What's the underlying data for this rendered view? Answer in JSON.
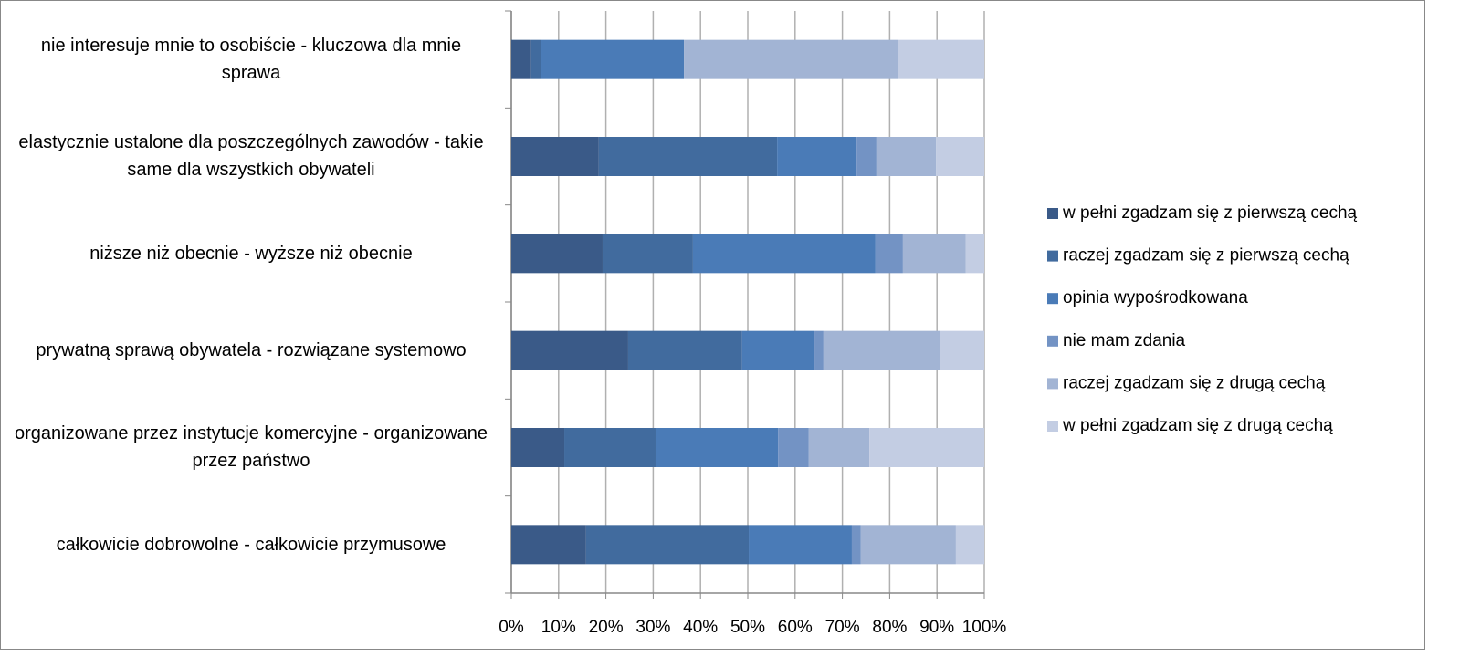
{
  "chart_data": {
    "type": "stacked_barh",
    "categories": [
      "nie interesuje mnie to osobiście - kluczowa dla mnie sprawa",
      "elastycznie ustalone dla poszczególnych zawodów - takie same dla wszystkich obywateli",
      "niższe niż obecnie - wyższe niż obecnie",
      "prywatną sprawą obywatela - rozwiązane systemowo",
      "organizowane przez instytucje komercyjne - organizowane przez państwo",
      "całkowicie dobrowolne - całkowicie przymusowe"
    ],
    "series": [
      {
        "name": "w pełni zgadzam się z pierwszą cechą",
        "color": "#3a5a88",
        "values": [
          4.2,
          18.5,
          19.3,
          24.7,
          11.2,
          15.8
        ]
      },
      {
        "name": "raczej zgadzam się z pierwszą cechą",
        "color": "#416b9e",
        "values": [
          2.1,
          37.7,
          19.1,
          24.1,
          19.3,
          34.4
        ]
      },
      {
        "name": "opinia wypośrodkowana",
        "color": "#4a7bb7",
        "values": [
          30.2,
          16.8,
          38.6,
          15.3,
          25.9,
          21.8
        ]
      },
      {
        "name": "nie mam zdania",
        "color": "#7393c4",
        "values": [
          0,
          4.2,
          5.8,
          1.9,
          6.5,
          1.9
        ]
      },
      {
        "name": "raczej zgadzam się z drugą cechą",
        "color": "#a2b4d4",
        "values": [
          45.2,
          12.6,
          13.3,
          24.7,
          12.8,
          20.1
        ]
      },
      {
        "name": "w pełni zgadzam się z drugą cechą",
        "color": "#c3cde3",
        "values": [
          18.3,
          10.2,
          3.9,
          9.3,
          24.3,
          6.0
        ]
      }
    ],
    "xlim": [
      0,
      100
    ],
    "xticks": [
      {
        "value": 0,
        "label": "0%"
      },
      {
        "value": 10,
        "label": "10%"
      },
      {
        "value": 20,
        "label": "20%"
      },
      {
        "value": 30,
        "label": "30%"
      },
      {
        "value": 40,
        "label": "40%"
      },
      {
        "value": 50,
        "label": "50%"
      },
      {
        "value": 60,
        "label": "60%"
      },
      {
        "value": 70,
        "label": "70%"
      },
      {
        "value": 80,
        "label": "80%"
      },
      {
        "value": 90,
        "label": "90%"
      },
      {
        "value": 100,
        "label": "100%"
      }
    ],
    "grid": true,
    "legend": "right"
  }
}
